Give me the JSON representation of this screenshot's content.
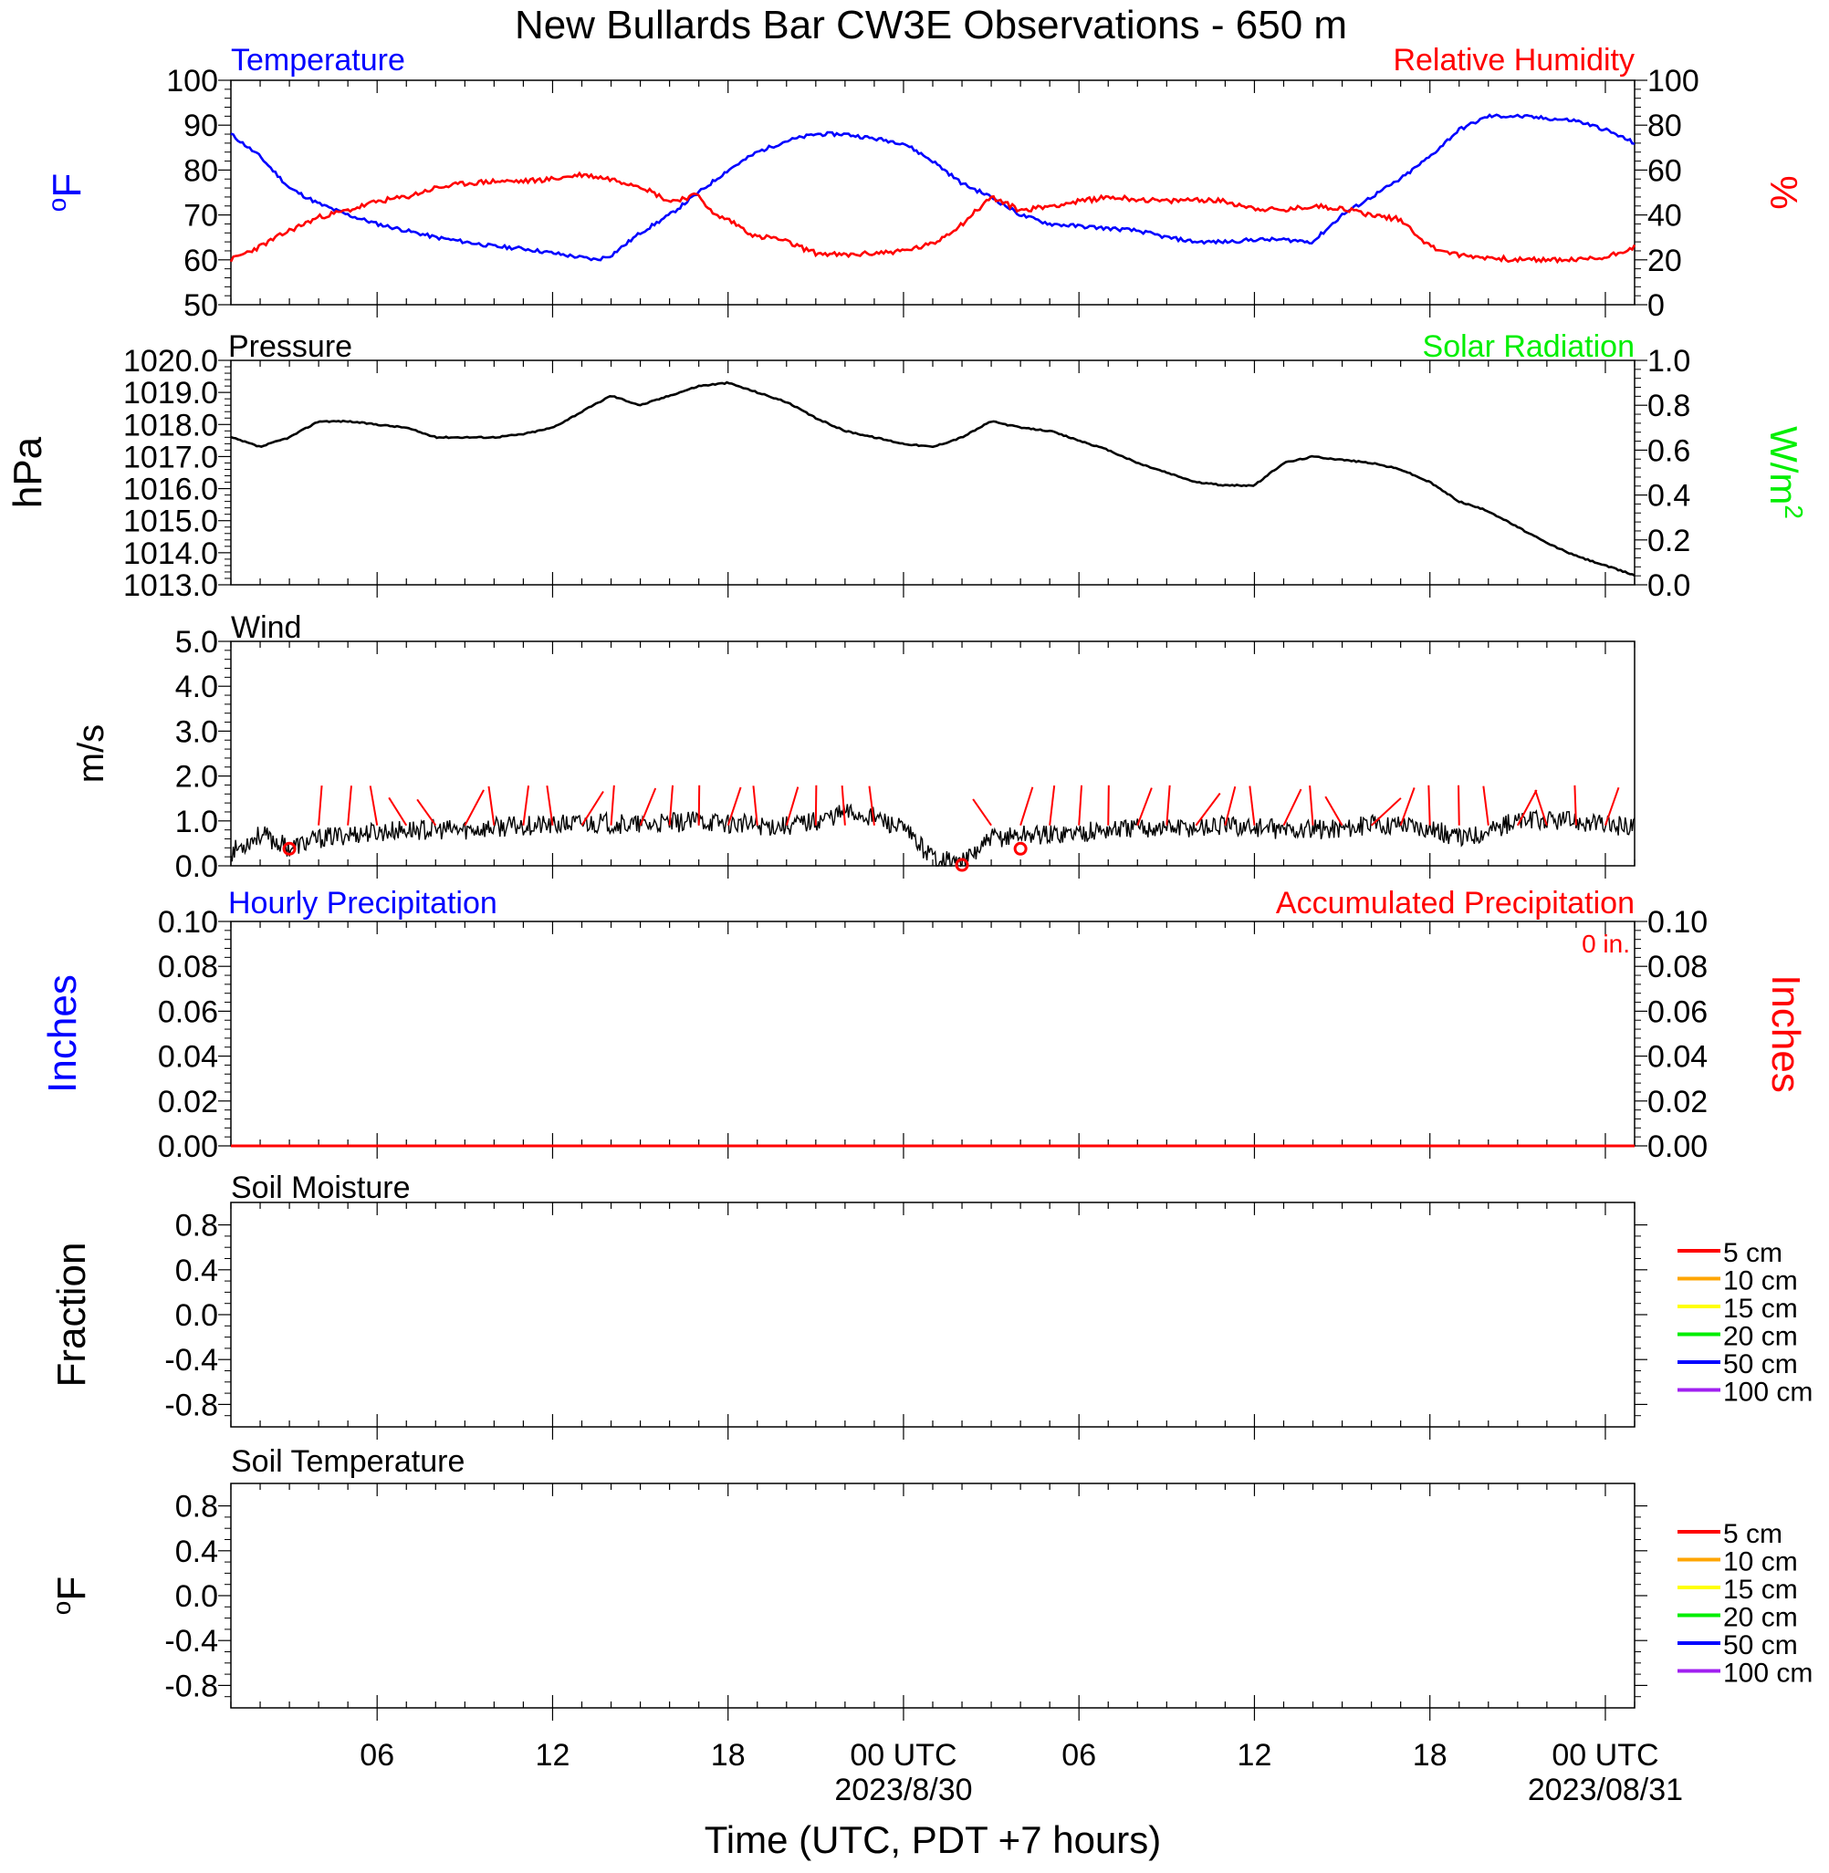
{
  "title": "New Bullards Bar CW3E Observations - 650 m",
  "xaxis": {
    "title": "Time (UTC, PDT +7 hours)",
    "tick_labels": [
      "06",
      "12",
      "18",
      "00 UTC",
      "06",
      "12",
      "18",
      "00 UTC"
    ],
    "tick_hours": [
      6,
      12,
      18,
      24,
      30,
      36,
      42,
      48
    ],
    "date_labels": [
      {
        "hour": 24,
        "text": "2023/8/30"
      },
      {
        "hour": 48,
        "text": "2023/08/31"
      }
    ],
    "range_hours": [
      1,
      49
    ]
  },
  "colors": {
    "temperature": "#0000ff",
    "humidity": "#ff0000",
    "pressure": "#000000",
    "solar": "#00ee00",
    "wind_barb": "#ff0000",
    "hourly_precip": "#0000ff",
    "accum_precip": "#ff0000",
    "soil": [
      "#ff0000",
      "#ffa500",
      "#ffff00",
      "#00ee00",
      "#0000ff",
      "#a020f0"
    ]
  },
  "panels": {
    "temp_rh": {
      "left_title": "Temperature",
      "right_title": "Relative Humidity",
      "left_unit": "oF",
      "right_unit": "%",
      "left_ticks": [
        "100",
        "90",
        "80",
        "70",
        "60",
        "50"
      ],
      "right_ticks": [
        "100",
        "80",
        "60",
        "40",
        "20",
        "0"
      ]
    },
    "pressure": {
      "left_title": "Pressure",
      "right_title": "Solar Radiation",
      "left_unit": "hPa",
      "right_unit": "W/m2",
      "left_ticks": [
        "1020.0",
        "1019.0",
        "1018.0",
        "1017.0",
        "1016.0",
        "1015.0",
        "1014.0",
        "1013.0"
      ],
      "right_ticks": [
        "1.0",
        "0.8",
        "0.6",
        "0.4",
        "0.2",
        "0.0"
      ]
    },
    "wind": {
      "left_title": "Wind",
      "left_unit": "m/s",
      "left_ticks": [
        "5.0",
        "4.0",
        "3.0",
        "2.0",
        "1.0",
        "0.0"
      ]
    },
    "precip": {
      "left_title": "Hourly Precipitation",
      "right_title": "Accumulated Precipitation",
      "total_label": "0 in.",
      "left_unit": "Inches",
      "right_unit": "Inches",
      "left_ticks": [
        "0.10",
        "0.08",
        "0.06",
        "0.04",
        "0.02",
        "0.00"
      ],
      "right_ticks": [
        "0.10",
        "0.08",
        "0.06",
        "0.04",
        "0.02",
        "0.00"
      ]
    },
    "soil_moisture": {
      "left_title": "Soil Moisture",
      "left_unit": "Fraction",
      "left_ticks": [
        "0.8",
        "0.4",
        "0.0",
        "-0.4",
        "-0.8"
      ]
    },
    "soil_temp": {
      "left_title": "Soil Temperature",
      "left_unit": "oF",
      "left_ticks": [
        "0.8",
        "0.4",
        "0.0",
        "-0.4",
        "-0.8"
      ]
    }
  },
  "soil_legend": [
    "5 cm",
    "10 cm",
    "15 cm",
    "20 cm",
    "50 cm",
    "100 cm"
  ],
  "chart_data": [
    {
      "type": "line",
      "x_unit": "hours since 2023-08-29 00 UTC",
      "series": [
        {
          "name": "Temperature",
          "axis": "left",
          "ylim": [
            50,
            100
          ],
          "x": [
            1,
            2,
            3,
            4,
            5,
            6,
            7,
            8,
            9,
            10,
            11,
            12,
            13,
            13.5,
            14,
            15,
            16,
            17,
            18,
            19,
            20,
            21,
            22,
            23,
            24,
            25,
            26,
            27,
            28,
            29,
            30,
            31,
            32,
            33,
            34,
            35,
            36,
            37,
            38,
            39,
            40,
            41,
            42,
            43,
            44,
            45,
            46,
            47,
            48,
            49
          ],
          "y": [
            88,
            83,
            76,
            72.5,
            70,
            68,
            66.5,
            65,
            64,
            63,
            62.5,
            61.5,
            60.5,
            60,
            61,
            66,
            70,
            75,
            80,
            84,
            86.5,
            88,
            88,
            87,
            86,
            82,
            77,
            74,
            70,
            68,
            67.5,
            67,
            66.5,
            65,
            64,
            64,
            64.5,
            64.5,
            64,
            70,
            74,
            78,
            83,
            89,
            92,
            92,
            91.5,
            91,
            89,
            86
          ]
        },
        {
          "name": "Relative Humidity",
          "axis": "right",
          "ylim": [
            0,
            100
          ],
          "x": [
            1,
            2,
            3,
            4,
            5,
            6,
            7,
            8,
            9,
            10,
            11,
            12,
            13,
            14,
            15,
            16,
            17,
            17.5,
            18,
            19,
            19.5,
            20,
            21,
            22,
            23,
            24,
            25,
            26,
            27,
            28,
            29,
            30,
            31,
            32,
            33,
            34,
            35,
            36,
            37,
            38,
            39,
            40,
            41,
            42,
            43,
            44,
            45,
            46,
            47,
            48,
            49
          ],
          "y": [
            20,
            26,
            33,
            39,
            42,
            46,
            48,
            52,
            54,
            55,
            55,
            56,
            58,
            56,
            53,
            46,
            49,
            40,
            38,
            30,
            30,
            28,
            23,
            22,
            23,
            24,
            27,
            36,
            48,
            42,
            44,
            46,
            48,
            47,
            46,
            47,
            46,
            43,
            42,
            44,
            43,
            40,
            38,
            26,
            22,
            21,
            20,
            20,
            20,
            21,
            26
          ]
        }
      ]
    },
    {
      "type": "line",
      "x_unit": "hours since 2023-08-29 00 UTC",
      "series": [
        {
          "name": "Pressure",
          "axis": "left",
          "ylim": [
            1013,
            1020
          ],
          "x": [
            1,
            2,
            3,
            4,
            5,
            6,
            7,
            8,
            9,
            10,
            11,
            12,
            13,
            14,
            15,
            16,
            17,
            18,
            19,
            20,
            21,
            22,
            23,
            24,
            25,
            26,
            27,
            28,
            29,
            30,
            31,
            32,
            33,
            34,
            35,
            36,
            37,
            38,
            39,
            40,
            41,
            42,
            43,
            44,
            45,
            46,
            47,
            48,
            49
          ],
          "y": [
            1017.6,
            1017.3,
            1017.6,
            1018.1,
            1018.1,
            1018.0,
            1017.9,
            1017.6,
            1017.6,
            1017.6,
            1017.7,
            1017.9,
            1018.4,
            1018.9,
            1018.6,
            1018.9,
            1019.2,
            1019.3,
            1019.0,
            1018.7,
            1018.2,
            1017.8,
            1017.6,
            1017.4,
            1017.3,
            1017.6,
            1018.1,
            1017.9,
            1017.8,
            1017.5,
            1017.2,
            1016.8,
            1016.5,
            1016.2,
            1016.1,
            1016.1,
            1016.8,
            1017.0,
            1016.9,
            1016.8,
            1016.6,
            1016.2,
            1015.6,
            1015.3,
            1014.8,
            1014.3,
            1013.9,
            1013.6,
            1013.3
          ]
        },
        {
          "name": "Solar Radiation",
          "axis": "right",
          "ylim": [
            0,
            1
          ],
          "x": [],
          "y": []
        }
      ]
    },
    {
      "type": "line",
      "x_unit": "hours since 2023-08-29 00 UTC",
      "series": [
        {
          "name": "Wind",
          "axis": "left",
          "ylim": [
            0,
            5
          ],
          "x": [
            1,
            2,
            3,
            4,
            5,
            6,
            7,
            8,
            9,
            10,
            11,
            12,
            13,
            14,
            15,
            16,
            17,
            18,
            19,
            20,
            21,
            22,
            23,
            24,
            25,
            26,
            27,
            28,
            29,
            30,
            31,
            32,
            33,
            34,
            35,
            36,
            37,
            38,
            39,
            40,
            41,
            42,
            43,
            44,
            45,
            46,
            47,
            48,
            49
          ],
          "y": [
            0.3,
            0.7,
            0.4,
            0.6,
            0.7,
            0.75,
            0.8,
            0.8,
            0.8,
            0.85,
            0.9,
            0.9,
            0.95,
            0.95,
            0.9,
            0.95,
            1.0,
            0.95,
            0.9,
            0.9,
            1.0,
            1.2,
            1.1,
            0.8,
            0.2,
            0.05,
            0.6,
            0.7,
            0.7,
            0.75,
            0.8,
            0.85,
            0.85,
            0.85,
            0.9,
            0.85,
            0.8,
            0.8,
            0.85,
            0.9,
            0.95,
            0.85,
            0.6,
            0.8,
            1.0,
            1.0,
            1.0,
            0.9,
            0.9
          ]
        }
      ],
      "calm_markers_hours": [
        3,
        26,
        28
      ],
      "barb_hours": [
        4,
        5,
        6,
        7,
        8,
        9,
        10,
        11,
        12,
        13,
        14,
        15,
        16,
        17,
        18,
        19,
        20,
        21,
        22,
        23,
        27,
        28,
        29,
        30,
        31,
        32,
        33,
        34,
        35,
        36,
        37,
        38,
        39,
        40,
        41,
        42,
        43,
        44,
        45,
        46,
        47,
        48
      ]
    },
    {
      "type": "line",
      "x_unit": "hours since 2023-08-29 00 UTC",
      "series": [
        {
          "name": "Hourly Precipitation",
          "axis": "left",
          "ylim": [
            0,
            0.1
          ],
          "x": [
            1,
            49
          ],
          "y": [
            0,
            0
          ]
        },
        {
          "name": "Accumulated Precipitation",
          "axis": "right",
          "ylim": [
            0,
            0.1
          ],
          "x": [
            1,
            49
          ],
          "y": [
            0,
            0
          ]
        }
      ]
    }
  ]
}
